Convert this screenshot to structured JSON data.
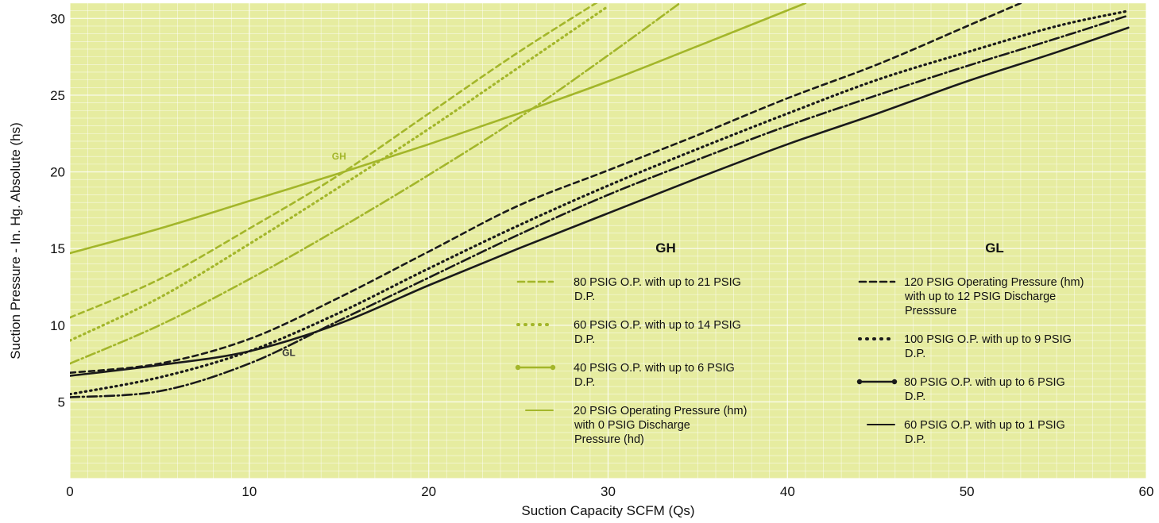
{
  "chart_data": {
    "type": "line",
    "xlabel": "Suction Capacity SCFM (Qs)",
    "ylabel": "Suction Pressure  -  In. Hg. Absolute (hs)",
    "xlim": [
      0,
      60
    ],
    "ylim": [
      0,
      31
    ],
    "x_ticks": [
      "0",
      "10",
      "20",
      "30",
      "40",
      "50",
      "60"
    ],
    "y_ticks": [
      "5",
      "10",
      "15",
      "20",
      "25",
      "30"
    ],
    "grid": true,
    "colors": {
      "background": "#e6eca0",
      "gh": "#a3b62a",
      "gl": "#1a1a1a"
    },
    "groups": [
      {
        "heading": "GH",
        "curve_label": "GH"
      },
      {
        "heading": "GL",
        "curve_label": "GL"
      }
    ],
    "series": [
      {
        "group": "GH",
        "style": "dashed",
        "legend": [
          "80 PSIG O.P. with up to 21 PSIG",
          "D.P."
        ],
        "x": [
          0,
          5,
          10,
          15,
          20,
          25,
          30
        ],
        "y": [
          10.5,
          13,
          16.3,
          19.8,
          23.8,
          27.8,
          31.5
        ]
      },
      {
        "group": "GH",
        "style": "dotted",
        "legend": [
          "60 PSIG O.P. with up to 14 PSIG",
          "D.P."
        ],
        "x": [
          0,
          5,
          10,
          15,
          20,
          25,
          30
        ],
        "y": [
          9,
          11.8,
          15.3,
          19,
          22.8,
          26.8,
          30.8
        ]
      },
      {
        "group": "GH",
        "style": "dash-dot",
        "legend": [
          "40 PSIG O.P. with up to 6 PSIG",
          "D.P."
        ],
        "x": [
          0,
          5,
          10,
          15,
          20,
          25,
          30,
          34
        ],
        "y": [
          7.5,
          10,
          13,
          16.3,
          19.8,
          23.5,
          27.6,
          31
        ]
      },
      {
        "group": "GH",
        "style": "solid",
        "legend": [
          "20 PSIG Operating Pressure (hm)",
          "with 0 PSIG Discharge",
          "Pressure (hd)"
        ],
        "x": [
          0,
          5,
          10,
          15,
          20,
          25,
          30,
          35,
          41
        ],
        "y": [
          14.7,
          16.3,
          18.1,
          19.9,
          21.8,
          23.8,
          25.9,
          28.2,
          31
        ]
      },
      {
        "group": "GL",
        "style": "dashed",
        "legend": [
          "120 PSIG Operating Pressure (hm)",
          "with up to 12 PSIG Discharge",
          "Presssure"
        ],
        "x": [
          0,
          5,
          10,
          15,
          20,
          25,
          30,
          35,
          40,
          45,
          50,
          53
        ],
        "y": [
          6.9,
          7.5,
          9.1,
          11.8,
          14.8,
          17.8,
          20.1,
          22.4,
          24.8,
          27,
          29.5,
          31
        ]
      },
      {
        "group": "GL",
        "style": "dotted",
        "legend": [
          "100 PSIG O.P. with up to 9 PSIG",
          "D.P."
        ],
        "x": [
          0,
          5,
          10,
          15,
          20,
          25,
          30,
          35,
          40,
          45,
          50,
          55,
          59
        ],
        "y": [
          5.5,
          6.6,
          8.3,
          10.8,
          13.7,
          16.5,
          19.1,
          21.5,
          23.8,
          26,
          27.8,
          29.5,
          30.5
        ]
      },
      {
        "group": "GL",
        "style": "dash-dot",
        "legend": [
          "80 PSIG O.P. with up to 6 PSIG",
          "D.P."
        ],
        "x": [
          0,
          5,
          10,
          15,
          20,
          25,
          30,
          35,
          40,
          45,
          50,
          55,
          59
        ],
        "y": [
          5.3,
          5.7,
          7.5,
          10.3,
          13.1,
          15.9,
          18.5,
          20.8,
          23,
          25,
          26.9,
          28.7,
          30.2
        ]
      },
      {
        "group": "GL",
        "style": "solid",
        "legend": [
          "60 PSIG O.P. with up to 1 PSIG",
          "D.P."
        ],
        "x": [
          0,
          5,
          10,
          15,
          20,
          25,
          30,
          35,
          40,
          45,
          50,
          55,
          59
        ],
        "y": [
          6.7,
          7.4,
          8.3,
          10.1,
          12.6,
          15,
          17.3,
          19.6,
          21.8,
          23.8,
          25.9,
          27.8,
          29.4
        ]
      }
    ]
  }
}
